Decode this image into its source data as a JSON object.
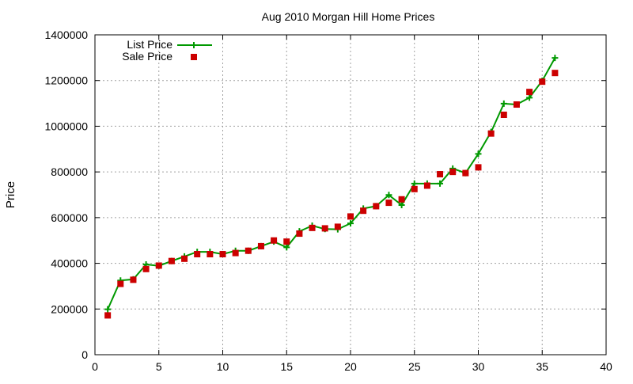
{
  "chart_data": {
    "type": "line",
    "title": "Aug 2010 Morgan Hill Home Prices",
    "xlabel": "",
    "ylabel": "Price",
    "xlim": [
      0,
      40
    ],
    "ylim": [
      0,
      1400000
    ],
    "xticks": [
      0,
      5,
      10,
      15,
      20,
      25,
      30,
      35,
      40
    ],
    "yticks": [
      0,
      200000,
      400000,
      600000,
      800000,
      1000000,
      1200000,
      1400000
    ],
    "grid": true,
    "legend_position": "top-left",
    "series": [
      {
        "name": "List Price",
        "style": "linespoints",
        "marker": "plus",
        "color": "#009900",
        "x": [
          1,
          2,
          3,
          4,
          5,
          6,
          7,
          8,
          9,
          10,
          11,
          12,
          13,
          14,
          15,
          16,
          17,
          18,
          19,
          20,
          21,
          22,
          23,
          24,
          25,
          26,
          27,
          28,
          29,
          30,
          31,
          32,
          33,
          34,
          35,
          36
        ],
        "y": [
          199000,
          325000,
          330000,
          395000,
          389000,
          410000,
          430000,
          450000,
          450000,
          440000,
          455000,
          455000,
          475000,
          495000,
          470000,
          540000,
          565000,
          550000,
          549000,
          575000,
          640000,
          650000,
          699000,
          655000,
          749000,
          749000,
          749000,
          815000,
          795000,
          879000,
          975000,
          1099000,
          1095000,
          1125000,
          1199000,
          1299000
        ]
      },
      {
        "name": "Sale Price",
        "style": "points",
        "marker": "square",
        "color": "#cc0000",
        "x": [
          1,
          2,
          3,
          4,
          5,
          6,
          7,
          8,
          9,
          10,
          11,
          12,
          13,
          14,
          15,
          16,
          17,
          18,
          19,
          20,
          21,
          22,
          23,
          24,
          25,
          26,
          27,
          28,
          29,
          30,
          31,
          32,
          33,
          34,
          35,
          36
        ],
        "y": [
          172000,
          310000,
          328000,
          375000,
          390000,
          410000,
          420000,
          440000,
          440000,
          440000,
          445000,
          455000,
          475000,
          500000,
          495000,
          530000,
          555000,
          553000,
          560000,
          605000,
          630000,
          650000,
          665000,
          680000,
          725000,
          740000,
          790000,
          800000,
          795000,
          820000,
          968000,
          1050000,
          1095000,
          1150000,
          1195000,
          1233000
        ]
      }
    ]
  }
}
